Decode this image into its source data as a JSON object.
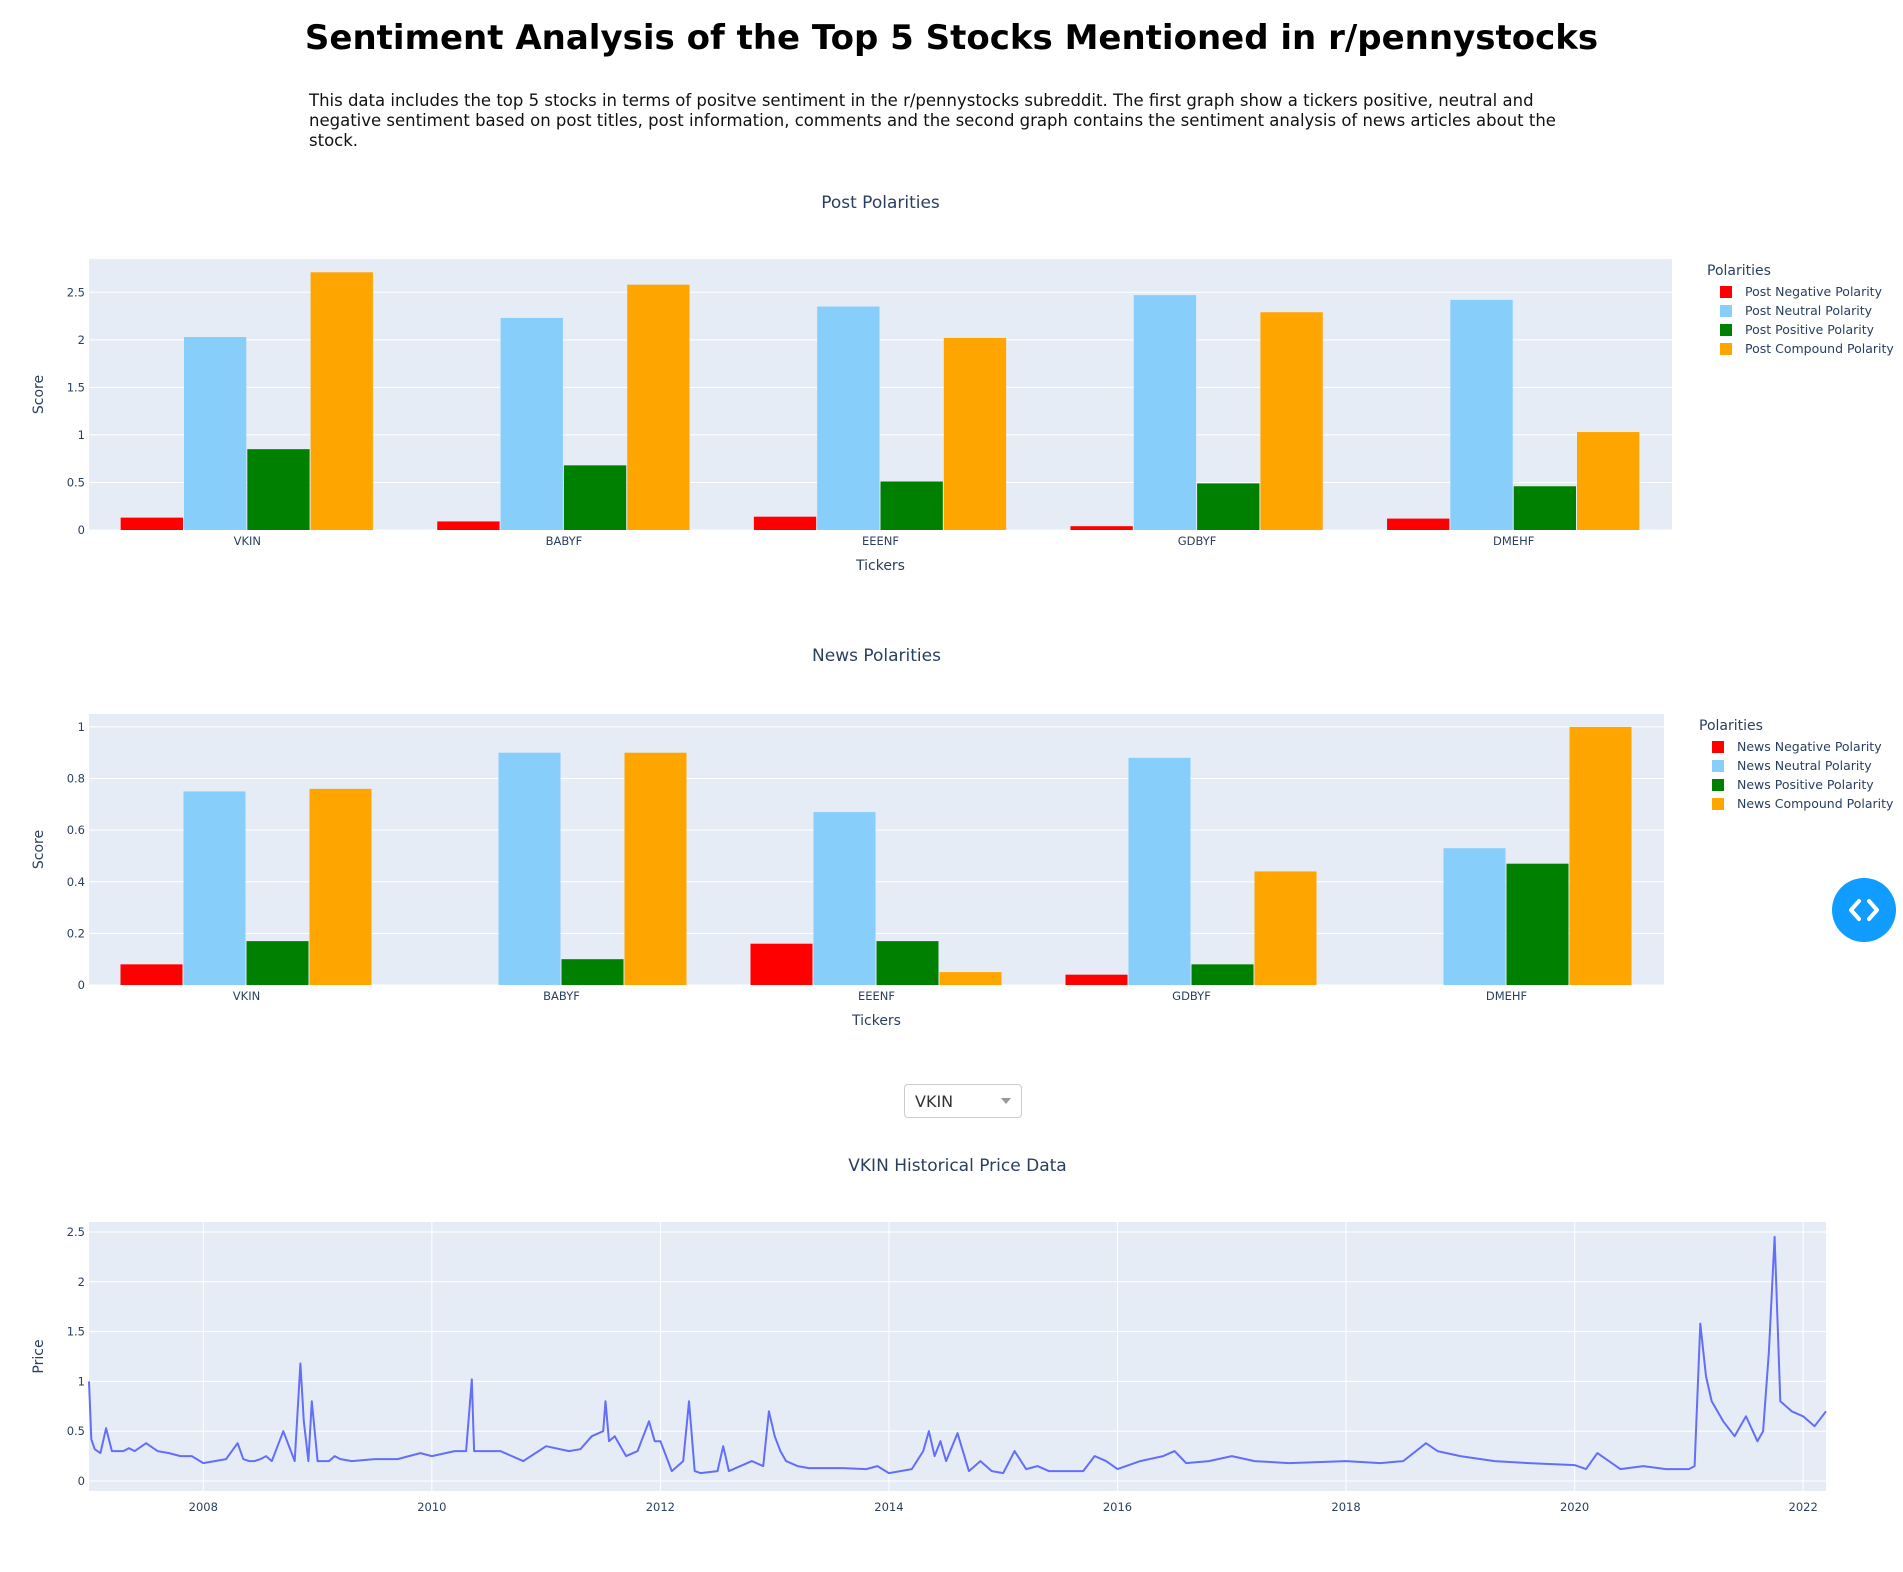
{
  "page": {
    "title": "Sentiment Analysis of the Top 5 Stocks Mentioned in r/pennystocks",
    "description": "This data includes the top 5 stocks in terms of positve sentiment in the r/pennystocks subreddit. The first graph show a tickers positive, neutral and negative sentiment based on post titles, post information, comments and the second graph contains the sentiment analysis of news articles about the stock."
  },
  "dropdown": {
    "selected": "VKIN"
  },
  "fab": {
    "icon": "code-brackets-icon"
  },
  "chart_data": [
    {
      "type": "bar",
      "title": "Post Polarities",
      "xlabel": "Tickers",
      "ylabel": "Score",
      "categories": [
        "VKIN",
        "BABYF",
        "EEENF",
        "GDBYF",
        "DMEHF"
      ],
      "ylim": [
        0,
        2.85
      ],
      "yticks": [
        0,
        0.5,
        1,
        1.5,
        2,
        2.5
      ],
      "ytick_labels": [
        "0",
        "0.5",
        "1",
        "1.5",
        "2",
        "2.5"
      ],
      "grid": true,
      "legend_title": "Polarities",
      "legend_position": "right",
      "series": [
        {
          "name": "Post Negative Polarity",
          "color": "#ff0000",
          "values": [
            0.13,
            0.09,
            0.14,
            0.04,
            0.12
          ]
        },
        {
          "name": "Post Neutral Polarity",
          "color": "#87cefa",
          "values": [
            2.03,
            2.23,
            2.35,
            2.47,
            2.42
          ]
        },
        {
          "name": "Post Positive Polarity",
          "color": "#008000",
          "values": [
            0.85,
            0.68,
            0.51,
            0.49,
            0.46
          ]
        },
        {
          "name": "Post Compound Polarity",
          "color": "#ffa500",
          "values": [
            2.71,
            2.58,
            2.02,
            2.29,
            1.03
          ]
        }
      ]
    },
    {
      "type": "bar",
      "title": "News Polarities",
      "xlabel": "Tickers",
      "ylabel": "Score",
      "categories": [
        "VKIN",
        "BABYF",
        "EEENF",
        "GDBYF",
        "DMEHF"
      ],
      "ylim": [
        0,
        1.05
      ],
      "yticks": [
        0,
        0.2,
        0.4,
        0.6,
        0.8,
        1
      ],
      "ytick_labels": [
        "0",
        "0.2",
        "0.4",
        "0.6",
        "0.8",
        "1"
      ],
      "grid": true,
      "legend_title": "Polarities",
      "legend_position": "right",
      "series": [
        {
          "name": "News Negative Polarity",
          "color": "#ff0000",
          "values": [
            0.08,
            0,
            0.16,
            0.04,
            0
          ]
        },
        {
          "name": "News Neutral Polarity",
          "color": "#87cefa",
          "values": [
            0.75,
            0.9,
            0.67,
            0.88,
            0.53
          ]
        },
        {
          "name": "News Positive Polarity",
          "color": "#008000",
          "values": [
            0.17,
            0.1,
            0.17,
            0.08,
            0.47
          ]
        },
        {
          "name": "News Compound Polarity",
          "color": "#ffa500",
          "values": [
            0.76,
            0.9,
            0.05,
            0.44,
            1.0
          ]
        }
      ]
    },
    {
      "type": "line",
      "title": "VKIN Historical Price Data",
      "xlabel": "",
      "ylabel": "Price",
      "xlim": [
        2007.0,
        2022.2
      ],
      "ylim": [
        -0.1,
        2.6
      ],
      "xticks": [
        2008,
        2010,
        2012,
        2014,
        2016,
        2018,
        2020,
        2022
      ],
      "xtick_labels": [
        "2008",
        "2010",
        "2012",
        "2014",
        "2016",
        "2018",
        "2020",
        "2022"
      ],
      "yticks": [
        0,
        0.5,
        1,
        1.5,
        2,
        2.5
      ],
      "ytick_labels": [
        "0",
        "0.5",
        "1",
        "1.5",
        "2",
        "2.5"
      ],
      "grid": true,
      "line_color": "#636efa",
      "series": [
        {
          "x": [
            2007.0,
            2007.02,
            2007.05,
            2007.1,
            2007.15,
            2007.2,
            2007.3,
            2007.35,
            2007.4,
            2007.5,
            2007.6,
            2007.7,
            2007.8,
            2007.9,
            2008.0,
            2008.1,
            2008.2,
            2008.3,
            2008.35,
            2008.4,
            2008.45,
            2008.5,
            2008.55,
            2008.6,
            2008.7,
            2008.8,
            2008.85,
            2008.88,
            2008.92,
            2008.95,
            2009.0,
            2009.05,
            2009.1,
            2009.15,
            2009.2,
            2009.3,
            2009.5,
            2009.7,
            2009.9,
            2010.0,
            2010.2,
            2010.3,
            2010.35,
            2010.37,
            2010.4,
            2010.6,
            2010.8,
            2011.0,
            2011.2,
            2011.3,
            2011.4,
            2011.5,
            2011.52,
            2011.55,
            2011.6,
            2011.7,
            2011.8,
            2011.9,
            2011.95,
            2012.0,
            2012.1,
            2012.2,
            2012.25,
            2012.3,
            2012.35,
            2012.5,
            2012.55,
            2012.6,
            2012.7,
            2012.8,
            2012.9,
            2012.95,
            2013.0,
            2013.05,
            2013.1,
            2013.2,
            2013.3,
            2013.4,
            2013.6,
            2013.8,
            2013.9,
            2014.0,
            2014.2,
            2014.3,
            2014.35,
            2014.4,
            2014.45,
            2014.5,
            2014.6,
            2014.7,
            2014.8,
            2014.9,
            2015.0,
            2015.1,
            2015.2,
            2015.3,
            2015.4,
            2015.5,
            2015.7,
            2015.8,
            2015.9,
            2016.0,
            2016.2,
            2016.4,
            2016.5,
            2016.6,
            2016.8,
            2017.0,
            2017.2,
            2017.5,
            2018.0,
            2018.3,
            2018.5,
            2018.7,
            2018.8,
            2019.0,
            2019.3,
            2019.6,
            2020.0,
            2020.1,
            2020.2,
            2020.4,
            2020.6,
            2020.8,
            2021.0,
            2021.05,
            2021.1,
            2021.15,
            2021.2,
            2021.3,
            2021.4,
            2021.5,
            2021.6,
            2021.65,
            2021.7,
            2021.75,
            2021.8,
            2021.85,
            2021.9,
            2022.0,
            2022.1,
            2022.2
          ],
          "y": [
            1.0,
            0.42,
            0.32,
            0.28,
            0.53,
            0.3,
            0.3,
            0.33,
            0.3,
            0.38,
            0.3,
            0.28,
            0.25,
            0.25,
            0.18,
            0.2,
            0.22,
            0.38,
            0.22,
            0.2,
            0.2,
            0.22,
            0.25,
            0.2,
            0.5,
            0.2,
            1.18,
            0.6,
            0.2,
            0.8,
            0.2,
            0.2,
            0.2,
            0.25,
            0.22,
            0.2,
            0.22,
            0.22,
            0.28,
            0.25,
            0.3,
            0.3,
            1.02,
            0.3,
            0.3,
            0.3,
            0.2,
            0.35,
            0.3,
            0.32,
            0.45,
            0.5,
            0.8,
            0.4,
            0.45,
            0.25,
            0.3,
            0.6,
            0.4,
            0.4,
            0.1,
            0.2,
            0.8,
            0.1,
            0.08,
            0.1,
            0.35,
            0.1,
            0.15,
            0.2,
            0.15,
            0.7,
            0.45,
            0.3,
            0.2,
            0.15,
            0.13,
            0.13,
            0.13,
            0.12,
            0.15,
            0.08,
            0.12,
            0.3,
            0.5,
            0.25,
            0.4,
            0.2,
            0.48,
            0.1,
            0.2,
            0.1,
            0.08,
            0.3,
            0.12,
            0.15,
            0.1,
            0.1,
            0.1,
            0.25,
            0.2,
            0.12,
            0.2,
            0.25,
            0.3,
            0.18,
            0.2,
            0.25,
            0.2,
            0.18,
            0.2,
            0.18,
            0.2,
            0.38,
            0.3,
            0.25,
            0.2,
            0.18,
            0.16,
            0.12,
            0.28,
            0.12,
            0.15,
            0.12,
            0.12,
            0.15,
            1.58,
            1.05,
            0.8,
            0.6,
            0.45,
            0.65,
            0.4,
            0.5,
            1.3,
            2.45,
            0.8,
            0.75,
            0.7,
            0.65,
            0.55,
            0.7
          ]
        }
      ]
    }
  ]
}
